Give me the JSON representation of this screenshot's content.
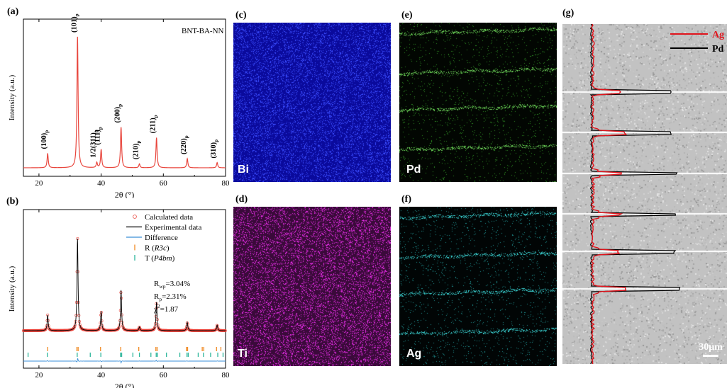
{
  "panels": {
    "a": "(a)",
    "b": "(b)",
    "c": "(c)",
    "d": "(d)",
    "e": "(e)",
    "f": "(f)",
    "g": "(g)"
  },
  "chart_data": [
    {
      "type": "line",
      "panel": "(a)",
      "sample_label": "BNT-BA-NN",
      "xlabel": "2θ (°)",
      "ylabel": "Intensity (a.u.)",
      "xlim": [
        15,
        80
      ],
      "xticks": [
        20,
        40,
        60,
        80
      ],
      "grid": false,
      "line_color": "#e8453c",
      "peaks": [
        {
          "x": 22.8,
          "height": 0.11,
          "main": "(100)",
          "sub": "p"
        },
        {
          "x": 32.4,
          "height": 1.0,
          "main": "(101)",
          "sub": "p"
        },
        {
          "x": 38.6,
          "height": 0.04,
          "main": "1/2(311)",
          "sub": "p"
        },
        {
          "x": 40.0,
          "height": 0.14,
          "main": "(111)",
          "sub": "p"
        },
        {
          "x": 46.4,
          "height": 0.31,
          "main": "(200)",
          "sub": "p"
        },
        {
          "x": 52.3,
          "height": 0.03,
          "main": "(210)",
          "sub": "p"
        },
        {
          "x": 57.8,
          "height": 0.23,
          "main": "(211)",
          "sub": "p"
        },
        {
          "x": 67.7,
          "height": 0.07,
          "main": "(220)",
          "sub": "p"
        },
        {
          "x": 77.3,
          "height": 0.04,
          "main": "(310)",
          "sub": "p"
        }
      ]
    },
    {
      "type": "line",
      "panel": "(b)",
      "xlabel": "2θ (°)",
      "ylabel": "Intensity (a.u.)",
      "xlim": [
        15,
        80
      ],
      "xticks": [
        20,
        40,
        60,
        80
      ],
      "grid": false,
      "legend_placement": "top-right",
      "legend": [
        {
          "name": "Calculated data",
          "marker": "circle",
          "color": "#e8453c"
        },
        {
          "name": "Experimental data",
          "marker": "line",
          "color": "#000000"
        },
        {
          "name": "Difference",
          "marker": "line",
          "color": "#3a8fd8"
        },
        {
          "name": "R (R3c)",
          "prefix": "R (",
          "italic": "R3c",
          "suffix": ")",
          "marker": "tick",
          "color": "#f08a24"
        },
        {
          "name": "T (P4bm)",
          "prefix": "T (",
          "italic": "P4bm",
          "suffix": ")",
          "marker": "tick",
          "color": "#2bb59a"
        }
      ],
      "stats": [
        {
          "symbol": "R",
          "sub": "wp",
          "sup": "",
          "value": "=3.04%"
        },
        {
          "symbol": "R",
          "sub": "p",
          "sup": "",
          "value": "=2.31%"
        },
        {
          "symbol": "χ",
          "sub": "",
          "sup": "2",
          "value": "=1.87"
        }
      ],
      "peaks": [
        {
          "x": 22.8,
          "height": 0.17
        },
        {
          "x": 32.4,
          "height": 1.0
        },
        {
          "x": 40.0,
          "height": 0.21
        },
        {
          "x": 46.4,
          "height": 0.44
        },
        {
          "x": 52.3,
          "height": 0.04
        },
        {
          "x": 57.8,
          "height": 0.31
        },
        {
          "x": 67.7,
          "height": 0.09
        },
        {
          "x": 77.3,
          "height": 0.06
        }
      ],
      "r_ticks": [
        22.8,
        32.2,
        32.6,
        39.8,
        46.3,
        52.1,
        57.6,
        58.0,
        67.4,
        67.8,
        72.5,
        73.0,
        77.1,
        78.5
      ],
      "t_ticks": [
        16.5,
        22.7,
        32.3,
        36.5,
        39.9,
        46.2,
        46.6,
        50.2,
        52.3,
        56.0,
        57.7,
        58.1,
        61.0,
        65.3,
        67.6,
        68.0,
        71.2,
        72.9,
        75.2,
        77.5,
        79.2
      ]
    }
  ],
  "maps": [
    {
      "panel": "(c)",
      "element": "Bi",
      "base": "#0a0a9c",
      "dot": "#3a4cff",
      "stripes": false
    },
    {
      "panel": "(e)",
      "element": "Pd",
      "base": "#020602",
      "dot": "#2e8a22",
      "stripes": true,
      "stripe_color": "#6fd65a"
    },
    {
      "panel": "(d)",
      "element": "Ti",
      "base": "#3a0a3a",
      "dot": "#e42ce4",
      "stripes": false
    },
    {
      "panel": "(f)",
      "element": "Ag",
      "base": "#010505",
      "dot": "#1f8e8e",
      "stripes": true,
      "stripe_color": "#39d0d0"
    }
  ],
  "linescan": {
    "panel": "(g)",
    "legend": [
      {
        "name": "Ag",
        "color": "#e0141c"
      },
      {
        "name": "Pd",
        "color": "#000000"
      }
    ],
    "layers": [
      {
        "y": 0.2,
        "ag": 0.35,
        "pd": 0.67
      },
      {
        "y": 0.32,
        "ag": 0.38,
        "pd": 0.67
      },
      {
        "y": 0.44,
        "ag": 0.35,
        "pd": 0.7
      },
      {
        "y": 0.56,
        "ag": 0.35,
        "pd": 0.69
      },
      {
        "y": 0.67,
        "ag": 0.34,
        "pd": 0.69
      },
      {
        "y": 0.78,
        "ag": 0.39,
        "pd": 0.72
      }
    ],
    "scale_bar": "30μm"
  }
}
